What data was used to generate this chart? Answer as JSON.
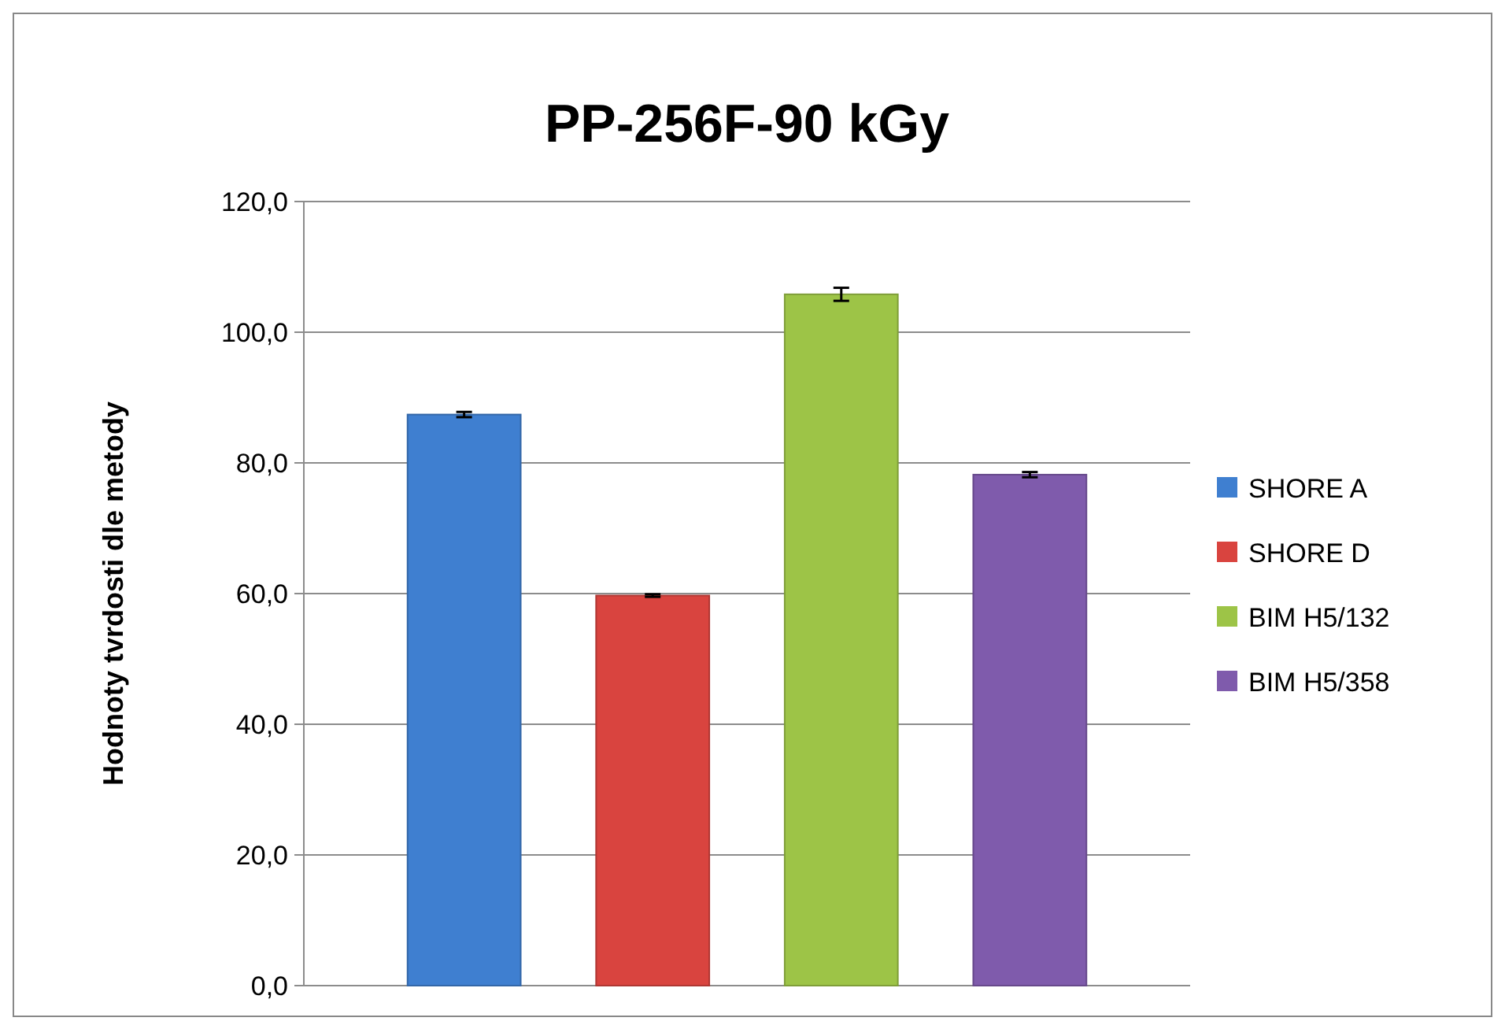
{
  "chart_data": {
    "type": "bar",
    "title": "PP-256F-90 kGy",
    "ylabel": "Hodnoty tvrdosti dle metody",
    "categories": [
      null
    ],
    "series": [
      {
        "name": "SHORE A",
        "color": "#3f7fd0",
        "values": [
          87.4
        ],
        "errors": [
          0.4
        ]
      },
      {
        "name": "SHORE D",
        "color": "#d9443f",
        "values": [
          59.7
        ],
        "errors": [
          0.2
        ]
      },
      {
        "name": "BIM H5/132",
        "color": "#9dc447",
        "values": [
          105.8
        ],
        "errors": [
          1.0
        ]
      },
      {
        "name": "BIM H5/358",
        "color": "#7f5bac",
        "values": [
          78.2
        ],
        "errors": [
          0.4
        ]
      }
    ],
    "ylim": [
      0,
      120
    ],
    "yticks": [
      {
        "value": 0,
        "label": "0,0"
      },
      {
        "value": 20,
        "label": "20,0"
      },
      {
        "value": 40,
        "label": "40,0"
      },
      {
        "value": 60,
        "label": "60,0"
      },
      {
        "value": 80,
        "label": "80,0"
      },
      {
        "value": 100,
        "label": "100,0"
      },
      {
        "value": 120,
        "label": "120,0"
      }
    ],
    "grid": "y",
    "legend": "right"
  }
}
